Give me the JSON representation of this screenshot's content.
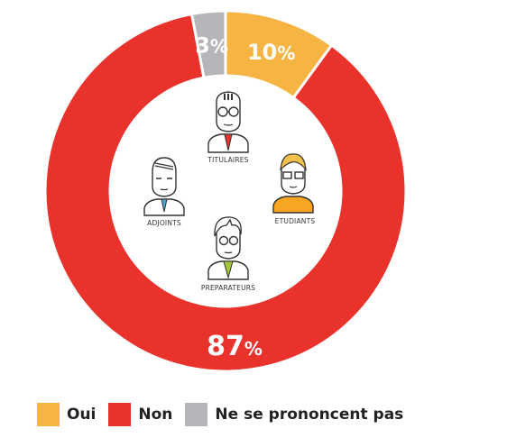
{
  "chart_data": {
    "type": "pie",
    "variant": "donut",
    "categories": [
      "Oui",
      "Non",
      "Ne se prononcent pas"
    ],
    "values": [
      10,
      87,
      3
    ],
    "colors": [
      "#f6b443",
      "#e8322b",
      "#b4b5b8"
    ],
    "value_labels": [
      "10",
      "87",
      "3"
    ],
    "unit": "%",
    "legend": {
      "placement": "bottom-left",
      "entries": [
        "Oui",
        "Non",
        "Ne se prononcent pas"
      ]
    }
  },
  "illustration": {
    "icons": [
      "titulaire-person-icon",
      "adjoint-person-icon",
      "etudiant-person-icon",
      "preparateur-person-icon"
    ],
    "labels": {
      "titulaires": "TITULAIRES",
      "adjoints": "ADJOINTS",
      "etudiants": "ETUDIANTS",
      "preparateurs": "PREPARATEURS"
    }
  }
}
